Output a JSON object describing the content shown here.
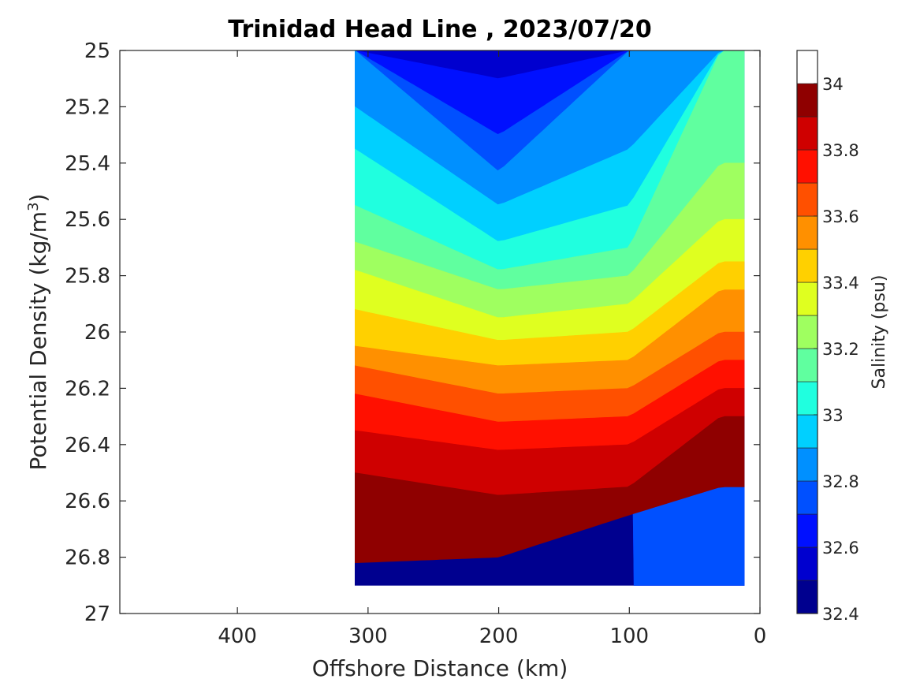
{
  "chart_data": {
    "type": "heatmap",
    "title": "Trinidad Head Line , 2023/07/20",
    "xlabel": "Offshore Distance (km)",
    "ylabel": "Potential Density (kg/m",
    "ylabel_sup": "3",
    "ylabel_close": ")",
    "xlim": [
      490,
      0
    ],
    "x_reversed": true,
    "ylim": [
      25,
      27
    ],
    "y_reversed": true,
    "x_ticks": [
      400,
      300,
      200,
      100,
      0
    ],
    "x_tick_labels": [
      "400",
      "300",
      "200",
      "100",
      "0"
    ],
    "y_ticks": [
      25,
      25.2,
      25.4,
      25.6,
      25.8,
      26,
      26.2,
      26.4,
      26.6,
      26.8,
      27
    ],
    "y_tick_labels": [
      "25",
      "25.2",
      "25.4",
      "25.6",
      "25.8",
      "26",
      "26.2",
      "26.4",
      "26.6",
      "26.8",
      "27"
    ],
    "colorbar": {
      "label": "Salinity (psu)",
      "min": 32.4,
      "max": 34.1,
      "tick_values": [
        32.4,
        32.6,
        32.8,
        33,
        33.2,
        33.4,
        33.6,
        33.8,
        34
      ],
      "tick_labels": [
        "32.4",
        "32.6",
        "32.8",
        "33",
        "33.2",
        "33.4",
        "33.6",
        "33.8",
        "34"
      ],
      "levels": [
        32.4,
        32.5,
        32.6,
        32.7,
        32.8,
        32.9,
        33.0,
        33.1,
        33.2,
        33.3,
        33.4,
        33.5,
        33.6,
        33.7,
        33.8,
        33.9,
        34.0,
        34.1
      ],
      "colors": [
        "#00008f",
        "#0000cf",
        "#0010ff",
        "#0050ff",
        "#0090ff",
        "#00d0ff",
        "#20ffdf",
        "#60ff9f",
        "#9fff60",
        "#dfff20",
        "#ffd000",
        "#ff9000",
        "#ff5000",
        "#ff1000",
        "#cf0000",
        "#8f0000"
      ]
    },
    "data_x_extent_km": [
      310,
      12
    ],
    "data_density_extent": [
      25,
      26.9
    ],
    "grid": false,
    "salinity_profiles": [
      {
        "distance_km": 310,
        "density_isolines": {
          "32.9": 25.2,
          "33.0": 25.35,
          "33.1": 25.55,
          "33.2": 25.68,
          "33.3": 25.78,
          "33.4": 25.92,
          "33.5": 26.05,
          "33.6": 26.12,
          "33.7": 26.22,
          "33.8": 26.35,
          "33.9": 26.5,
          "34.0": 26.82
        }
      },
      {
        "distance_km": 200,
        "density_isolines": {
          "32.6": 25.1,
          "32.7": 25.3,
          "32.8": 25.43,
          "32.9": 25.55,
          "33.0": 25.68,
          "33.1": 25.78,
          "33.2": 25.85,
          "33.3": 25.95,
          "33.4": 26.03,
          "33.5": 26.12,
          "33.6": 26.22,
          "33.7": 26.32,
          "33.8": 26.42,
          "33.9": 26.58,
          "34.0": 26.8
        }
      },
      {
        "distance_km": 100,
        "density_isolines": {
          "32.9": 25.35,
          "33.0": 25.55,
          "33.1": 25.7,
          "33.2": 25.8,
          "33.3": 25.9,
          "33.4": 26.0,
          "33.5": 26.1,
          "33.6": 26.2,
          "33.7": 26.3,
          "33.8": 26.4,
          "33.9": 26.55,
          "34.0": 26.65
        }
      },
      {
        "distance_km": 30,
        "density_isolines": {
          "33.2": 25.4,
          "33.3": 25.6,
          "33.4": 25.75,
          "33.5": 25.85,
          "33.6": 26.0,
          "33.7": 26.1,
          "33.8": 26.2,
          "33.9": 26.3,
          "34.0": 26.55
        }
      }
    ]
  }
}
